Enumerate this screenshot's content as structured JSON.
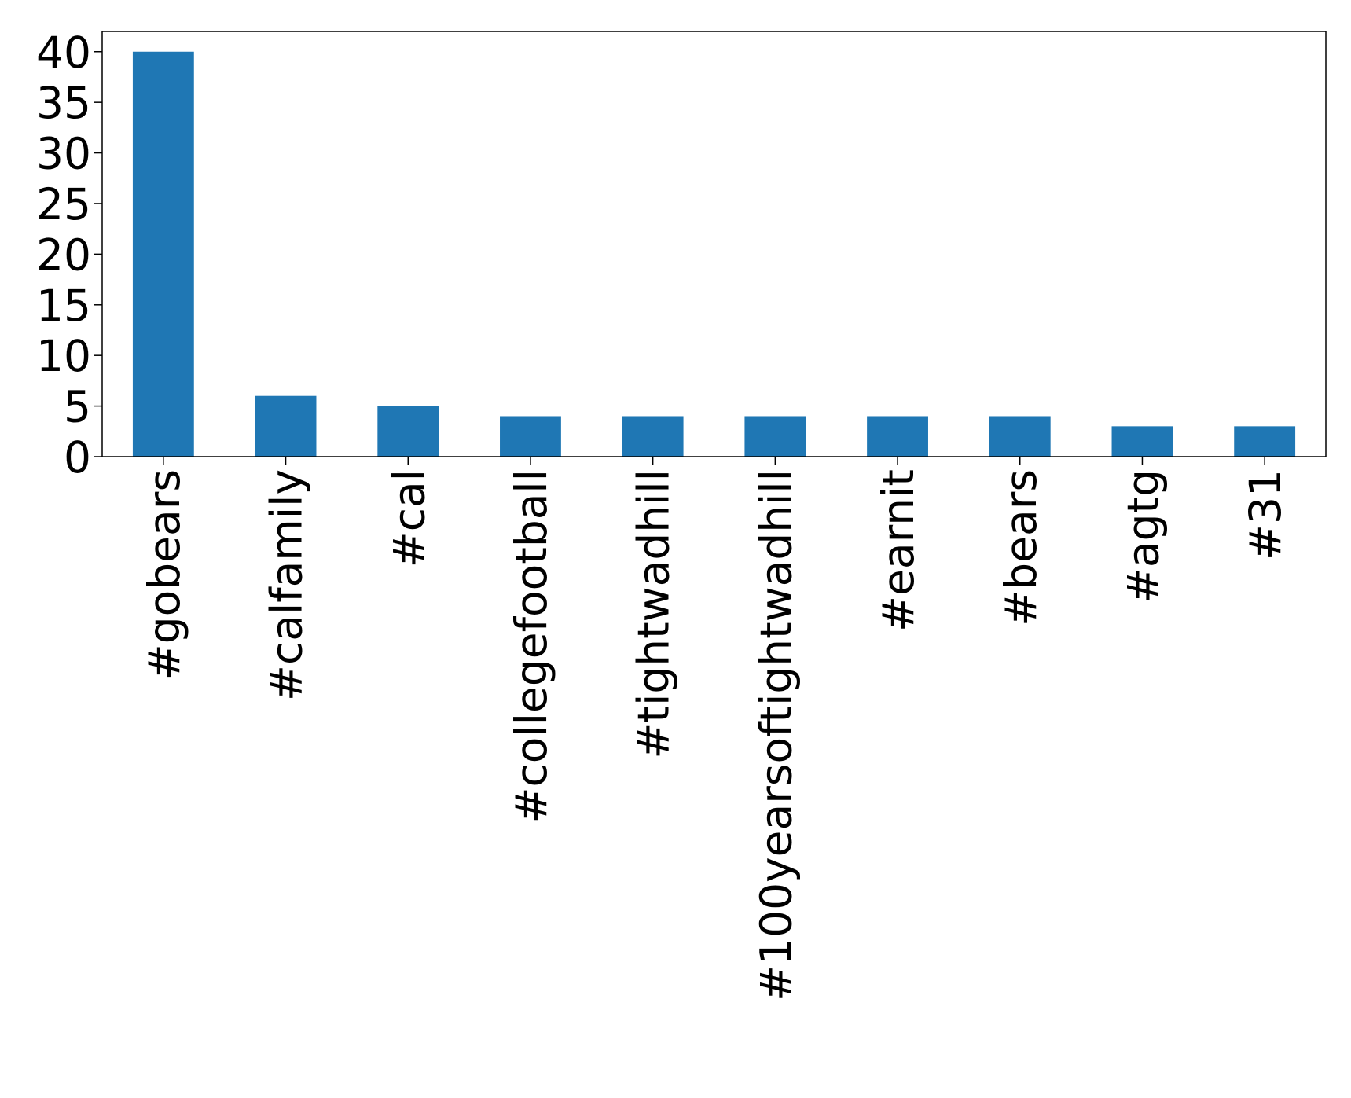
{
  "chart_data": {
    "type": "bar",
    "categories": [
      "#gobears",
      "#calfamily",
      "#cal",
      "#collegefootball",
      "#tightwadhill",
      "#100yearsoftightwadhill",
      "#earnit",
      "#bears",
      "#agtg",
      "#31"
    ],
    "values": [
      40,
      6,
      5,
      4,
      4,
      4,
      4,
      4,
      3,
      3
    ],
    "color": "#1f77b4",
    "ylim": [
      0,
      42
    ],
    "yticks": [
      0,
      5,
      10,
      15,
      20,
      25,
      30,
      35,
      40
    ],
    "grid": false
  }
}
